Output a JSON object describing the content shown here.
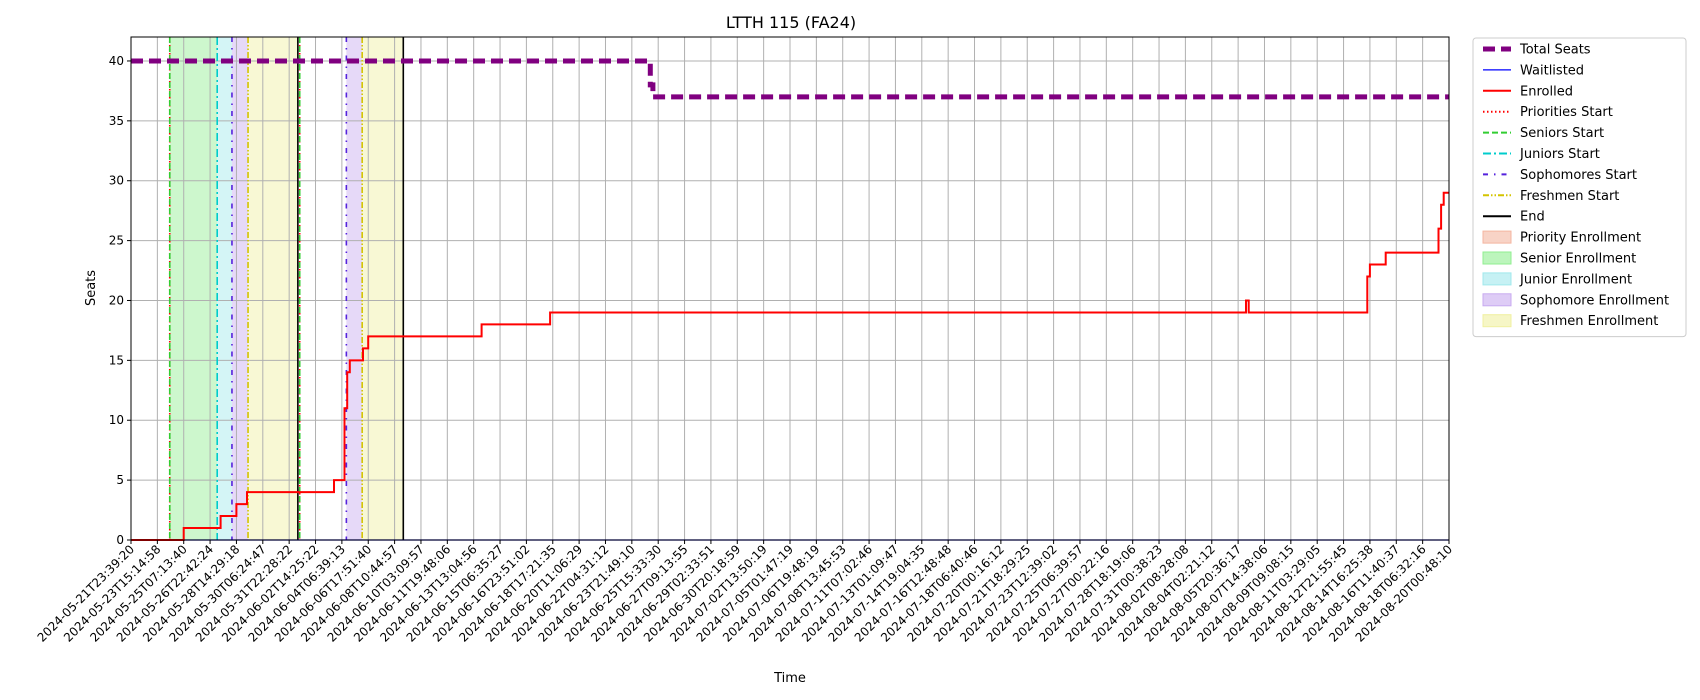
{
  "chart_data": {
    "type": "line",
    "title": "LTTH 115 (FA24)",
    "xlabel": "Time",
    "ylabel": "Seats",
    "ylim": [
      0,
      42
    ],
    "yticks": [
      0,
      5,
      10,
      15,
      20,
      25,
      30,
      35,
      40
    ],
    "grid": true,
    "legend_position": "outside-right",
    "x_ticks": [
      "2024-05-21T23:39:20",
      "2024-05-23T15:14:58",
      "2024-05-25T07:13:40",
      "2024-05-26T22:42:24",
      "2024-05-28T14:29:18",
      "2024-05-30T06:24:47",
      "2024-05-31T22:28:22",
      "2024-06-02T14:25:22",
      "2024-06-04T06:39:13",
      "2024-06-06T17:51:40",
      "2024-06-08T10:44:57",
      "2024-06-10T03:09:57",
      "2024-06-11T19:48:06",
      "2024-06-13T13:04:56",
      "2024-06-15T06:35:27",
      "2024-06-16T23:51:02",
      "2024-06-18T17:21:35",
      "2024-06-20T11:06:29",
      "2024-06-22T04:31:12",
      "2024-06-23T21:49:10",
      "2024-06-25T15:33:30",
      "2024-06-27T09:13:55",
      "2024-06-29T02:33:51",
      "2024-06-30T20:18:59",
      "2024-07-02T13:50:19",
      "2024-07-05T01:47:19",
      "2024-07-06T19:48:19",
      "2024-07-08T13:45:53",
      "2024-07-11T07:02:46",
      "2024-07-13T01:09:47",
      "2024-07-14T19:04:35",
      "2024-07-16T12:48:48",
      "2024-07-18T06:40:46",
      "2024-07-20T00:16:12",
      "2024-07-21T18:29:25",
      "2024-07-23T12:39:02",
      "2024-07-25T06:39:57",
      "2024-07-27T00:22:16",
      "2024-07-28T18:19:06",
      "2024-07-31T00:38:23",
      "2024-08-02T08:28:08",
      "2024-08-04T02:21:12",
      "2024-08-05T20:36:17",
      "2024-08-07T14:38:06",
      "2024-08-09T09:08:15",
      "2024-08-11T03:29:05",
      "2024-08-12T21:55:45",
      "2024-08-14T16:25:38",
      "2024-08-16T11:40:37",
      "2024-08-18T06:32:16",
      "2024-08-20T00:48:10"
    ],
    "x_range": [
      0,
      50
    ],
    "series": [
      {
        "name": "Total Seats",
        "color": "#800080",
        "style": "dashed-thick",
        "points": [
          [
            0,
            40
          ],
          [
            19.7,
            40
          ],
          [
            19.7,
            38
          ],
          [
            19.8,
            38
          ],
          [
            19.8,
            37
          ],
          [
            50,
            37
          ]
        ]
      },
      {
        "name": "Waitlisted",
        "color": "#0000ff",
        "style": "solid-thin",
        "points": [
          [
            0,
            0
          ],
          [
            50,
            0
          ]
        ]
      },
      {
        "name": "Enrolled",
        "color": "#ff0000",
        "style": "solid",
        "points": [
          [
            0,
            0
          ],
          [
            2.0,
            0
          ],
          [
            2.0,
            1
          ],
          [
            3.4,
            1
          ],
          [
            3.4,
            2
          ],
          [
            4.0,
            2
          ],
          [
            4.0,
            3
          ],
          [
            4.4,
            3
          ],
          [
            4.4,
            4
          ],
          [
            7.7,
            4
          ],
          [
            7.7,
            5
          ],
          [
            8.1,
            5
          ],
          [
            8.1,
            11
          ],
          [
            8.2,
            11
          ],
          [
            8.2,
            14
          ],
          [
            8.3,
            14
          ],
          [
            8.3,
            15
          ],
          [
            8.8,
            15
          ],
          [
            8.8,
            16
          ],
          [
            9.0,
            16
          ],
          [
            9.0,
            17
          ],
          [
            13.3,
            17
          ],
          [
            13.3,
            18
          ],
          [
            15.9,
            18
          ],
          [
            15.9,
            19
          ],
          [
            42.3,
            19
          ],
          [
            42.3,
            20
          ],
          [
            42.4,
            20
          ],
          [
            42.4,
            19
          ],
          [
            46.9,
            19
          ],
          [
            46.9,
            22
          ],
          [
            47.0,
            22
          ],
          [
            47.0,
            23
          ],
          [
            47.6,
            23
          ],
          [
            47.6,
            24
          ],
          [
            49.6,
            24
          ],
          [
            49.6,
            26
          ],
          [
            49.7,
            26
          ],
          [
            49.7,
            28
          ],
          [
            49.8,
            28
          ],
          [
            49.8,
            29
          ],
          [
            50,
            29
          ]
        ]
      }
    ],
    "vlines": [
      {
        "name": "Priorities Start",
        "color": "#ff0000",
        "style": "dotted",
        "x": [
          1.47,
          6.4
        ]
      },
      {
        "name": "Seniors Start",
        "color": "#32cd32",
        "style": "dashed",
        "x": [
          1.47,
          6.4
        ]
      },
      {
        "name": "Juniors Start",
        "color": "#00cccc",
        "style": "dashdot",
        "x": [
          3.27
        ]
      },
      {
        "name": "Sophomores Start",
        "color": "#5522dd",
        "style": "dashdot-sparse",
        "x": [
          3.83,
          8.17
        ]
      },
      {
        "name": "Freshmen Start",
        "color": "#d4c400",
        "style": "dashdotdot",
        "x": [
          4.44,
          8.77
        ]
      },
      {
        "name": "End",
        "color": "#000000",
        "style": "solid",
        "x": [
          6.33,
          10.33
        ]
      }
    ],
    "spans": [
      {
        "name": "Senior Enrollment",
        "color": "#90ee90",
        "x0": 1.47,
        "x1": 3.27
      },
      {
        "name": "Junior Enrollment",
        "color": "#a0e8ec",
        "x0": 3.27,
        "x1": 3.83
      },
      {
        "name": "Sophomore Enrollment",
        "color": "#c8aaf0",
        "x0": 3.83,
        "x1": 4.44
      },
      {
        "name": "Freshmen Enrollment",
        "color": "#f0f0a0",
        "x0": 4.44,
        "x1": 6.33
      },
      {
        "name": "Sophomore Enrollment",
        "color": "#c8aaf0",
        "x0": 8.17,
        "x1": 8.77
      },
      {
        "name": "Freshmen Enrollment",
        "color": "#f0f0a0",
        "x0": 8.77,
        "x1": 10.33
      }
    ],
    "legend": [
      {
        "label": "Total Seats",
        "kind": "line",
        "color": "#800080",
        "style": "dashed-thick"
      },
      {
        "label": "Waitlisted",
        "kind": "line",
        "color": "#0000ff",
        "style": "solid-thin"
      },
      {
        "label": "Enrolled",
        "kind": "line",
        "color": "#ff0000",
        "style": "solid"
      },
      {
        "label": "Priorities Start",
        "kind": "line",
        "color": "#ff0000",
        "style": "dotted"
      },
      {
        "label": "Seniors Start",
        "kind": "line",
        "color": "#32cd32",
        "style": "dashed"
      },
      {
        "label": "Juniors Start",
        "kind": "line",
        "color": "#00cccc",
        "style": "dashdot"
      },
      {
        "label": "Sophomores Start",
        "kind": "line",
        "color": "#5522dd",
        "style": "dashdot-sparse"
      },
      {
        "label": "Freshmen Start",
        "kind": "line",
        "color": "#d4c400",
        "style": "dashdotdot"
      },
      {
        "label": "End",
        "kind": "line",
        "color": "#000000",
        "style": "solid"
      },
      {
        "label": "Priority Enrollment",
        "kind": "patch",
        "color": "#f4b6a0"
      },
      {
        "label": "Senior Enrollment",
        "kind": "patch",
        "color": "#90ee90"
      },
      {
        "label": "Junior Enrollment",
        "kind": "patch",
        "color": "#a0e8ec"
      },
      {
        "label": "Sophomore Enrollment",
        "kind": "patch",
        "color": "#c8aaf0"
      },
      {
        "label": "Freshmen Enrollment",
        "kind": "patch",
        "color": "#f0f0a0"
      }
    ]
  }
}
